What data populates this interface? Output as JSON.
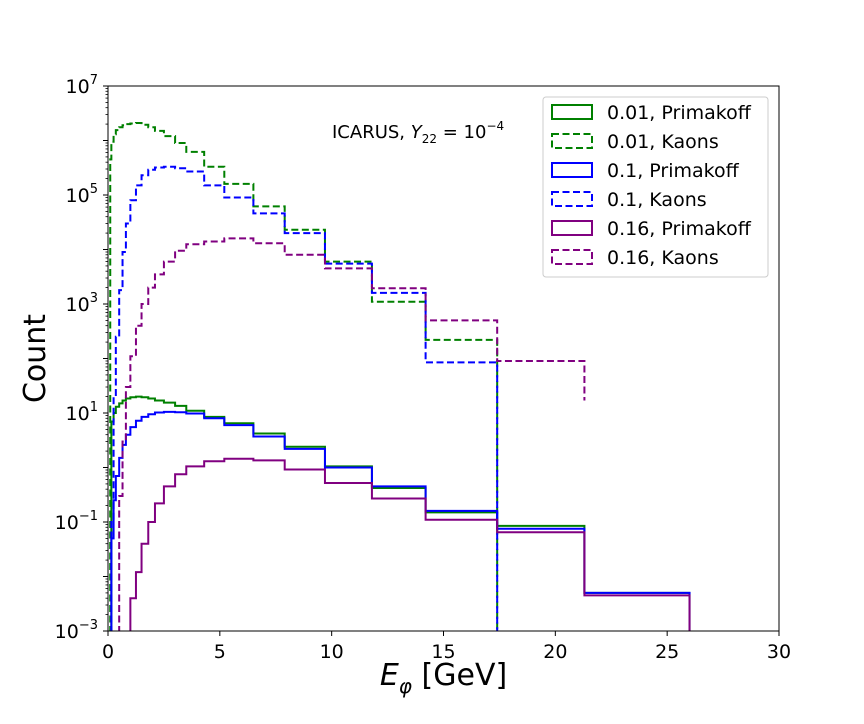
{
  "chart_data": {
    "type": "step-histogram",
    "xscale": "linear",
    "yscale": "log",
    "xlim": [
      0,
      30
    ],
    "ylim": [
      0.001,
      10000000
    ],
    "xlabel": "E_φ [GeV]",
    "xlabel_parts": {
      "symbol": "E",
      "sub": "φ",
      "unit": " [GeV]"
    },
    "ylabel": "Count",
    "xticks": [
      0,
      5,
      10,
      15,
      20,
      25,
      30
    ],
    "xtick_labels": [
      "0",
      "5",
      "10",
      "15",
      "20",
      "25",
      "30"
    ],
    "yticks": [
      0.001,
      0.1,
      10,
      1000,
      100000,
      10000000
    ],
    "ytick_labels": [
      {
        "base": "10",
        "exp": "−3"
      },
      {
        "base": "10",
        "exp": "−1"
      },
      {
        "base": "10",
        "exp": "1"
      },
      {
        "base": "10",
        "exp": "3"
      },
      {
        "base": "10",
        "exp": "5"
      },
      {
        "base": "10",
        "exp": "7"
      }
    ],
    "annotation": {
      "text": "ICARUS, Y_22 = 10^−4",
      "prefix": "ICARUS, ",
      "sym": "Y",
      "sub": "22",
      "eq": " = 10",
      "sup": "−4"
    },
    "legend_position": "upper right",
    "grid": false,
    "series": [
      {
        "name": "0.01, Primakoff",
        "color": "#008000",
        "style": "solid",
        "edges": [
          0.15,
          0.25,
          0.35,
          0.5,
          0.65,
          0.8,
          1.0,
          1.25,
          1.5,
          1.8,
          2.1,
          2.5,
          3.0,
          3.5,
          4.3,
          5.2,
          6.5,
          7.9,
          9.7,
          11.8,
          14.2,
          17.4,
          21.3,
          26.0
        ],
        "values": [
          7,
          10,
          13,
          15,
          17,
          18.5,
          19.5,
          20,
          19.5,
          18.5,
          17,
          15.5,
          13.5,
          11,
          8.5,
          6.5,
          4.2,
          2.4,
          1.05,
          0.42,
          0.15,
          0.085,
          0.005
        ]
      },
      {
        "name": "0.01, Kaons",
        "color": "#008000",
        "style": "dashed",
        "edges": [
          0.1,
          0.15,
          0.25,
          0.35,
          0.5,
          0.65,
          0.8,
          1.0,
          1.25,
          1.5,
          1.8,
          2.1,
          2.5,
          3.0,
          3.5,
          4.3,
          5.2,
          6.5,
          7.9,
          9.7,
          11.8,
          14.2,
          17.4
        ],
        "values": [
          450000,
          950000,
          1300000,
          1550000,
          1750000,
          1900000,
          2000000,
          2050000,
          2100000,
          1950000,
          1750000,
          1500000,
          1200000,
          900000,
          620000,
          330000,
          160000,
          62000,
          23000,
          6000,
          1100,
          220
        ]
      },
      {
        "name": "0.1, Primakoff",
        "color": "#0000ff",
        "style": "solid",
        "edges": [
          0.15,
          0.25,
          0.35,
          0.5,
          0.65,
          0.8,
          1.0,
          1.25,
          1.5,
          1.8,
          2.1,
          2.5,
          3.0,
          3.5,
          4.3,
          5.2,
          6.5,
          7.9,
          9.7,
          11.8,
          14.2,
          17.4,
          21.3,
          26.0
        ],
        "values": [
          0.05,
          0.25,
          0.7,
          1.5,
          2.6,
          4.0,
          5.5,
          7.2,
          8.5,
          9.5,
          10.2,
          10.5,
          10.3,
          9.8,
          8.0,
          6.0,
          3.7,
          2.2,
          1.0,
          0.45,
          0.16,
          0.075,
          0.005
        ]
      },
      {
        "name": "0.1, Kaons",
        "color": "#0000ff",
        "style": "dashed",
        "edges": [
          0.15,
          0.25,
          0.35,
          0.5,
          0.65,
          0.8,
          1.0,
          1.25,
          1.5,
          1.8,
          2.1,
          2.5,
          3.0,
          3.5,
          4.3,
          5.2,
          6.5,
          7.9,
          9.7,
          11.8,
          14.2,
          17.4
        ],
        "values": [
          0.1,
          20,
          250,
          1800,
          9000,
          30000,
          80000,
          150000,
          230000,
          290000,
          320000,
          330000,
          310000,
          270000,
          150000,
          90000,
          46000,
          20000,
          5500,
          1600,
          85
        ]
      },
      {
        "name": "0.16, Primakoff",
        "color": "#800080",
        "style": "solid",
        "edges": [
          1.0,
          1.25,
          1.5,
          1.8,
          2.1,
          2.5,
          3.0,
          3.5,
          4.3,
          5.2,
          6.5,
          7.9,
          9.7,
          11.8,
          14.2,
          17.4,
          21.3,
          26.0
        ],
        "values": [
          0.004,
          0.012,
          0.04,
          0.1,
          0.22,
          0.45,
          0.75,
          1.05,
          1.3,
          1.45,
          1.35,
          0.92,
          0.52,
          0.27,
          0.11,
          0.065,
          0.0045
        ]
      },
      {
        "name": "0.16, Kaons",
        "color": "#800080",
        "style": "dashed",
        "edges": [
          0.5,
          0.65,
          0.8,
          1.0,
          1.25,
          1.5,
          1.8,
          2.1,
          2.5,
          3.0,
          3.5,
          4.3,
          5.2,
          6.5,
          7.9,
          9.7,
          11.8,
          14.2,
          17.4,
          21.3
        ],
        "values": [
          0.3,
          3,
          30,
          110,
          400,
          1000,
          2000,
          3500,
          6000,
          9500,
          12500,
          14000,
          16000,
          13000,
          8000,
          4500,
          1950,
          500,
          90,
          17
        ]
      }
    ]
  }
}
